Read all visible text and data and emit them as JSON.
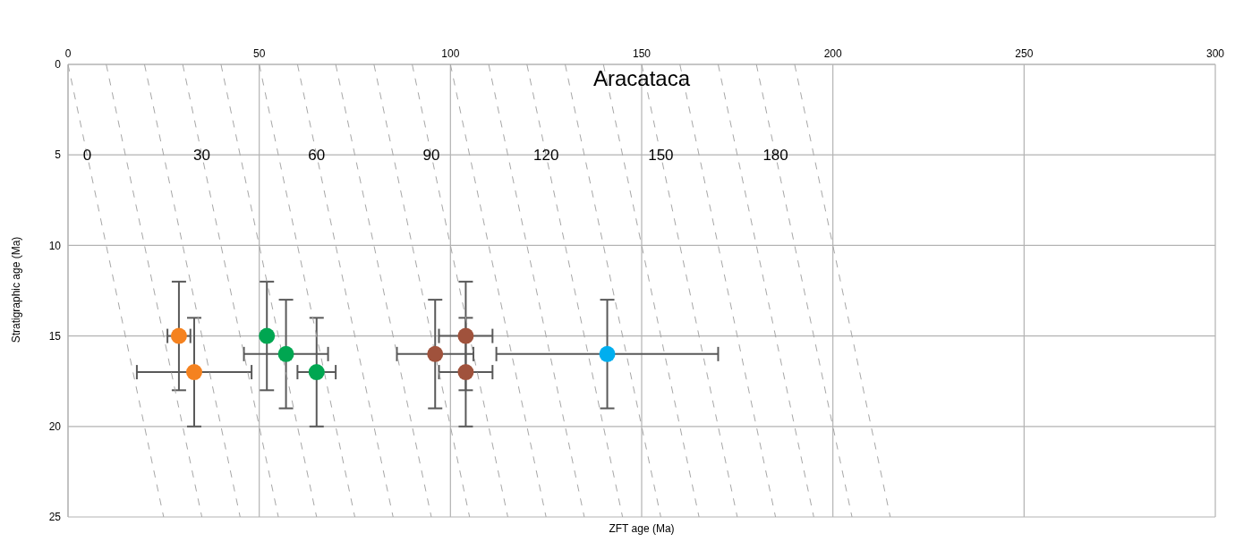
{
  "chart_data": {
    "type": "scatter",
    "title": "Aracataca",
    "xlabel": "ZFT age (Ma)",
    "ylabel": "Stratigraphic age (Ma)",
    "xlim": [
      0,
      300
    ],
    "xticks": [
      0,
      50,
      100,
      150,
      200,
      250,
      300
    ],
    "ylim": [
      25,
      0
    ],
    "yticks": [
      0,
      5,
      10,
      15,
      20,
      25
    ],
    "grid": true,
    "marker": "circle",
    "annotations": [
      {
        "text": "0",
        "x": 5,
        "y": 5
      },
      {
        "text": "30",
        "x": 35,
        "y": 5
      },
      {
        "text": "60",
        "x": 65,
        "y": 5
      },
      {
        "text": "90",
        "x": 95,
        "y": 5
      },
      {
        "text": "120",
        "x": 125,
        "y": 5
      },
      {
        "text": "150",
        "x": 155,
        "y": 5
      },
      {
        "text": "180",
        "x": 185,
        "y": 5
      }
    ],
    "series": [
      {
        "type": "line",
        "line_style": "dashed",
        "marker": "none",
        "color": "#a6a6a6",
        "x": [
          0,
          25
        ],
        "values": [
          0,
          25
        ]
      },
      {
        "type": "line",
        "line_style": "dashed",
        "marker": "none",
        "color": "#a6a6a6",
        "x": [
          10,
          35
        ],
        "values": [
          0,
          25
        ]
      },
      {
        "type": "line",
        "line_style": "dashed",
        "marker": "none",
        "color": "#a6a6a6",
        "x": [
          20,
          45
        ],
        "values": [
          0,
          25
        ]
      },
      {
        "type": "line",
        "line_style": "dashed",
        "marker": "none",
        "color": "#a6a6a6",
        "x": [
          30,
          55
        ],
        "values": [
          0,
          25
        ]
      },
      {
        "type": "line",
        "line_style": "dashed",
        "marker": "none",
        "color": "#a6a6a6",
        "x": [
          40,
          65
        ],
        "values": [
          0,
          25
        ]
      },
      {
        "type": "line",
        "line_style": "dashed",
        "marker": "none",
        "color": "#a6a6a6",
        "x": [
          50,
          75
        ],
        "values": [
          0,
          25
        ]
      },
      {
        "type": "line",
        "line_style": "dashed",
        "marker": "none",
        "color": "#a6a6a6",
        "x": [
          60,
          85
        ],
        "values": [
          0,
          25
        ]
      },
      {
        "type": "line",
        "line_style": "dashed",
        "marker": "none",
        "color": "#a6a6a6",
        "x": [
          70,
          95
        ],
        "values": [
          0,
          25
        ]
      },
      {
        "type": "line",
        "line_style": "dashed",
        "marker": "none",
        "color": "#a6a6a6",
        "x": [
          80,
          105
        ],
        "values": [
          0,
          25
        ]
      },
      {
        "type": "line",
        "line_style": "dashed",
        "marker": "none",
        "color": "#a6a6a6",
        "x": [
          90,
          115
        ],
        "values": [
          0,
          25
        ]
      },
      {
        "type": "line",
        "line_style": "dashed",
        "marker": "none",
        "color": "#a6a6a6",
        "x": [
          100,
          125
        ],
        "values": [
          0,
          25
        ]
      },
      {
        "type": "line",
        "line_style": "dashed",
        "marker": "none",
        "color": "#a6a6a6",
        "x": [
          110,
          135
        ],
        "values": [
          0,
          25
        ]
      },
      {
        "type": "line",
        "line_style": "dashed",
        "marker": "none",
        "color": "#a6a6a6",
        "x": [
          120,
          145
        ],
        "values": [
          0,
          25
        ]
      },
      {
        "type": "line",
        "line_style": "dashed",
        "marker": "none",
        "color": "#a6a6a6",
        "x": [
          130,
          155
        ],
        "values": [
          0,
          25
        ]
      },
      {
        "type": "line",
        "line_style": "dashed",
        "marker": "none",
        "color": "#a6a6a6",
        "x": [
          140,
          165
        ],
        "values": [
          0,
          25
        ]
      },
      {
        "type": "line",
        "line_style": "dashed",
        "marker": "none",
        "color": "#a6a6a6",
        "x": [
          150,
          175
        ],
        "values": [
          0,
          25
        ]
      },
      {
        "type": "line",
        "line_style": "dashed",
        "marker": "none",
        "color": "#a6a6a6",
        "x": [
          160,
          185
        ],
        "values": [
          0,
          25
        ]
      },
      {
        "type": "line",
        "line_style": "dashed",
        "marker": "none",
        "color": "#a6a6a6",
        "x": [
          170,
          195
        ],
        "values": [
          0,
          25
        ]
      },
      {
        "type": "line",
        "line_style": "dashed",
        "marker": "none",
        "color": "#a6a6a6",
        "x": [
          180,
          205
        ],
        "values": [
          0,
          25
        ]
      },
      {
        "type": "line",
        "line_style": "dashed",
        "marker": "none",
        "color": "#a6a6a6",
        "x": [
          190,
          215
        ],
        "values": [
          0,
          25
        ]
      },
      {
        "color": "#f5821f",
        "x": [
          29,
          33
        ],
        "values": [
          15,
          17
        ],
        "errors": [
          3,
          3
        ],
        "xerrors": [
          3,
          15
        ]
      },
      {
        "color": "#00a651",
        "x": [
          52,
          57,
          65
        ],
        "values": [
          15,
          16,
          17
        ],
        "errors": [
          3,
          3,
          3
        ],
        "xerrors": [
          null,
          11,
          5
        ]
      },
      {
        "color": "#a0523c",
        "x": [
          104,
          96,
          104
        ],
        "values": [
          15,
          16,
          17
        ],
        "errors": [
          3,
          3,
          3
        ],
        "xerrors": [
          7,
          10,
          7
        ]
      },
      {
        "color": "#00aeef",
        "x": [
          141
        ],
        "values": [
          16
        ],
        "errors": [
          3
        ],
        "xerrors": [
          29
        ]
      }
    ]
  }
}
